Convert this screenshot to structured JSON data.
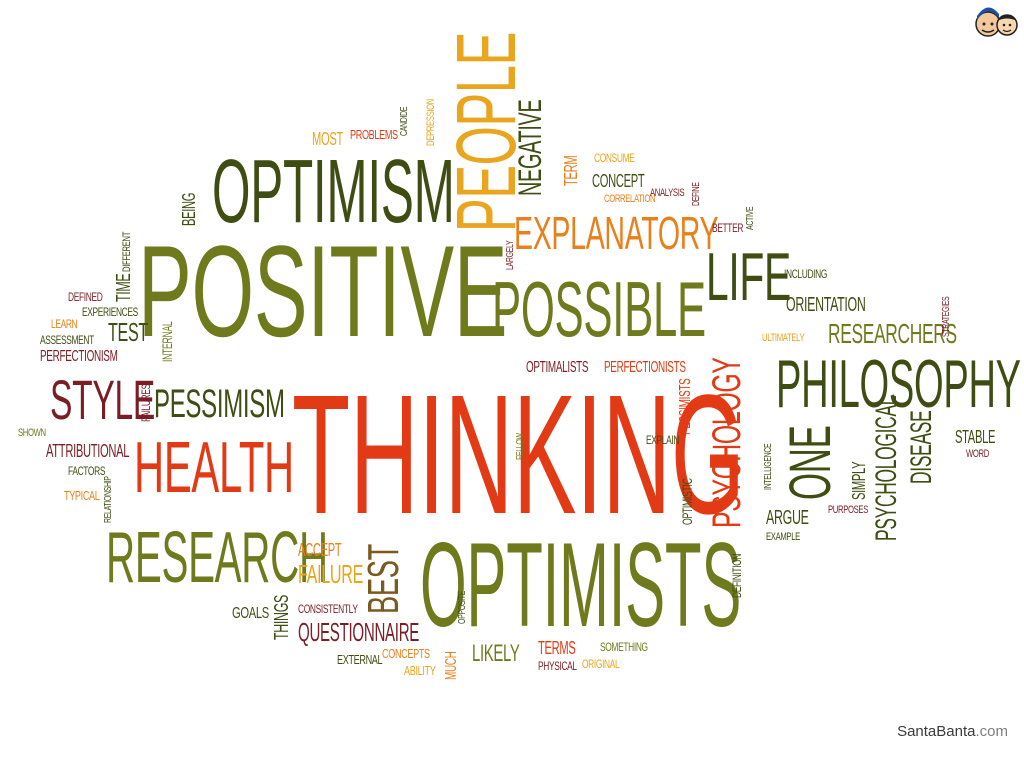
{
  "colors": {
    "olive": "#6f7a1c",
    "darkgreen": "#3f4d12",
    "red": "#e23a14",
    "orange": "#e8801c",
    "gold": "#e8a51d",
    "maroon": "#7a1d24",
    "brown": "#7a5a1e"
  },
  "words": [
    "POSITIVE",
    "THINKING",
    "OPTIMISTS",
    "OPTIMISM",
    "PEOPLE",
    "POSSIBLE",
    "PHILOSOPHY",
    "HEALTH",
    "RESEARCH",
    "STYLE",
    "PESSIMISM",
    "EXPLANATORY",
    "LIFE",
    "PSYCHOLOGY",
    "ONE",
    "BEST",
    "NEGATIVE",
    "RESEARCHERS",
    "PSYCHOLOGICAL",
    "DISEASE",
    "FAILURE",
    "ACCEPT",
    "QUESTIONNAIRE",
    "LIKELY",
    "TERMS",
    "PHYSICAL",
    "MUCH",
    "ABILITY",
    "CONCEPTS",
    "EXTERNAL",
    "THINGS",
    "GOALS",
    "CONSISTENTLY",
    "ATTRIBUTIONAL",
    "FACTORS",
    "TYPICAL",
    "RELATIONSHIP",
    "SHOWN",
    "PERFECTIONISM",
    "ASSESSMENT",
    "LEARN",
    "DEFINED",
    "EXPERIENCES",
    "TEST",
    "TIME",
    "DIFFERENT",
    "BEING",
    "INTERNAL",
    "FAILURES",
    "MOST",
    "PROBLEMS",
    "CANDIDE",
    "DEPRESSION",
    "TERM",
    "CONSUME",
    "CONCEPT",
    "CORRELATION",
    "ANALYSIS",
    "DEFINE",
    "BETTER",
    "ACTIVE",
    "INCLUDING",
    "ORIENTATION",
    "STRATEGIES",
    "ULTIMATELY",
    "OPTIMALISTS",
    "PERFECTIONISTS",
    "PESSIMISTS",
    "EXPLAIN",
    "FELLOW",
    "OPTIMISTIC",
    "INTELLIGENCE",
    "ARGUE",
    "EXAMPLE",
    "SIMPLY",
    "PURPOSES",
    "STABLE",
    "WORD",
    "DEFINITION",
    "OPPOSITE",
    "SOMETHING",
    "ORIGINAL",
    "LARGELY"
  ],
  "brand": {
    "name": "SantaBanta",
    "domain": ".com"
  },
  "logo_icon": "cartoon-faces-logo"
}
